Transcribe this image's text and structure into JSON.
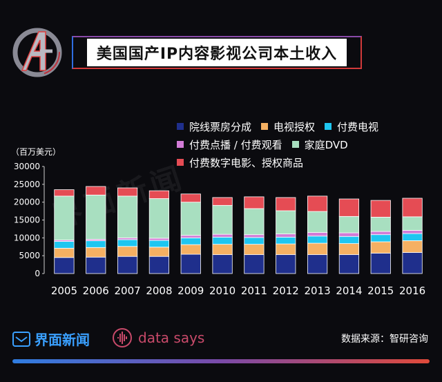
{
  "header": {
    "title": "美国国产IP内容影视公司本土收入"
  },
  "footer": {
    "brand": "界面新闻",
    "datasays": "data says",
    "source": "数据来源：智研咨询"
  },
  "watermark": "界面新闻",
  "chart_data": {
    "type": "bar",
    "stacked": true,
    "title": "美国国产IP内容影视公司本土收入",
    "unit_label": "（百万美元）",
    "ylim": [
      0,
      30000
    ],
    "yticks": [
      "0",
      "5000",
      "10000",
      "15000",
      "20000",
      "25000",
      "30000"
    ],
    "categories": [
      "2005",
      "2006",
      "2007",
      "2008",
      "2009",
      "2010",
      "2011",
      "2012",
      "2013",
      "2014",
      "2015",
      "2016"
    ],
    "series": [
      {
        "name": "院线票房分成",
        "color": "#1f2f8c",
        "values": [
          4500,
          4600,
          4800,
          4800,
          5400,
          5300,
          5300,
          5300,
          5300,
          5300,
          5700,
          5900
        ]
      },
      {
        "name": "电视授权",
        "color": "#f5b062",
        "values": [
          2600,
          2700,
          2800,
          2600,
          2700,
          2900,
          2900,
          3000,
          3200,
          3100,
          3200,
          3300
        ]
      },
      {
        "name": "付费电视",
        "color": "#1ec6f0",
        "values": [
          1900,
          1900,
          1900,
          1900,
          1900,
          2000,
          1900,
          1900,
          2000,
          2000,
          2000,
          2000
        ]
      },
      {
        "name": "付费点播 / 付费观看",
        "color": "#d27bd6",
        "values": [
          400,
          400,
          500,
          600,
          700,
          800,
          800,
          900,
          1000,
          1000,
          900,
          900
        ]
      },
      {
        "name": "家庭DVD",
        "color": "#a8dfc0",
        "values": [
          12300,
          12400,
          11700,
          11100,
          9300,
          8100,
          7300,
          6500,
          5900,
          4600,
          4000,
          3800
        ]
      },
      {
        "name": "付费数字电影、授权商品",
        "color": "#e54c54",
        "values": [
          1800,
          2400,
          2300,
          2200,
          2300,
          2200,
          3300,
          3700,
          4300,
          4900,
          4700,
          5200
        ]
      }
    ]
  }
}
